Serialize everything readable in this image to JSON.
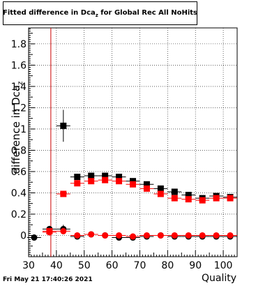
{
  "title_main": "Fitted difference in Dca",
  "title_sub": "z",
  "title_rest": " for Global Rec All NoHits",
  "timestamp": "Fri May 21 17:40:26 2021",
  "chart_data": {
    "type": "scatter",
    "title": "Fitted difference in Dca_z for Global Rec All NoHits",
    "xlabel": "Quality",
    "ylabel": "difference in Dca_z",
    "ylabel_main": "difference in Dca",
    "ylabel_sub": "z",
    "xlim": [
      30,
      105
    ],
    "ylim": [
      -0.2,
      1.95
    ],
    "xticks": [
      30,
      40,
      50,
      60,
      70,
      80,
      90,
      100
    ],
    "yticks": [
      0,
      0.2,
      0.4,
      0.6,
      0.8,
      1,
      1.2,
      1.4,
      1.6,
      1.8
    ],
    "grid": true,
    "cut_line_x": 38,
    "series": [
      {
        "color": "#000000",
        "points": [
          {
            "x": 32,
            "y": -0.02,
            "xerr": 2.5,
            "yerr": 0.02
          },
          {
            "x": 37.5,
            "y": 0.06,
            "xerr": 2.5,
            "yerr": 0.03
          },
          {
            "x": 42.5,
            "y": 0.06,
            "xerr": 2.5,
            "yerr": 0.04
          },
          {
            "x": 47.5,
            "y": -0.01,
            "xerr": 2.5,
            "yerr": 0.02
          },
          {
            "x": 52.5,
            "y": 0.01,
            "xerr": 2.5,
            "yerr": 0.01
          },
          {
            "x": 57.5,
            "y": 0.0,
            "xerr": 2.5,
            "yerr": 0.01
          },
          {
            "x": 62.5,
            "y": -0.02,
            "xerr": 2.5,
            "yerr": 0.01
          },
          {
            "x": 67.5,
            "y": -0.02,
            "xerr": 2.5,
            "yerr": 0.01
          },
          {
            "x": 72.5,
            "y": -0.01,
            "xerr": 2.5,
            "yerr": 0.01
          },
          {
            "x": 77.5,
            "y": 0.0,
            "xerr": 2.5,
            "yerr": 0.01
          },
          {
            "x": 82.5,
            "y": -0.01,
            "xerr": 2.5,
            "yerr": 0.01
          },
          {
            "x": 87.5,
            "y": -0.01,
            "xerr": 2.5,
            "yerr": 0.01
          },
          {
            "x": 92.5,
            "y": -0.01,
            "xerr": 2.5,
            "yerr": 0.01
          },
          {
            "x": 97.5,
            "y": -0.01,
            "xerr": 2.5,
            "yerr": 0.01
          },
          {
            "x": 102.5,
            "y": -0.01,
            "xerr": 2.5,
            "yerr": 0.01
          }
        ]
      },
      {
        "color": "#000000",
        "points": [
          {
            "x": 42.5,
            "y": 1.03,
            "xerr": 2.5,
            "yerr": 0.15
          },
          {
            "x": 47.5,
            "y": 0.55,
            "xerr": 2.5,
            "yerr": 0.03
          },
          {
            "x": 52.5,
            "y": 0.56,
            "xerr": 2.5,
            "yerr": 0.02
          },
          {
            "x": 57.5,
            "y": 0.56,
            "xerr": 2.5,
            "yerr": 0.02
          },
          {
            "x": 62.5,
            "y": 0.55,
            "xerr": 2.5,
            "yerr": 0.02
          },
          {
            "x": 67.5,
            "y": 0.51,
            "xerr": 2.5,
            "yerr": 0.02
          },
          {
            "x": 72.5,
            "y": 0.48,
            "xerr": 2.5,
            "yerr": 0.02
          },
          {
            "x": 77.5,
            "y": 0.44,
            "xerr": 2.5,
            "yerr": 0.02
          },
          {
            "x": 82.5,
            "y": 0.41,
            "xerr": 2.5,
            "yerr": 0.02
          },
          {
            "x": 87.5,
            "y": 0.38,
            "xerr": 2.5,
            "yerr": 0.02
          },
          {
            "x": 92.5,
            "y": 0.35,
            "xerr": 2.5,
            "yerr": 0.02
          },
          {
            "x": 97.5,
            "y": 0.37,
            "xerr": 2.5,
            "yerr": 0.02
          },
          {
            "x": 102.5,
            "y": 0.36,
            "xerr": 2.5,
            "yerr": 0.02
          }
        ]
      },
      {
        "color": "#ff0000",
        "points": [
          {
            "x": 37.5,
            "y": 0.03,
            "xerr": 2.5,
            "yerr": 0.03
          },
          {
            "x": 42.5,
            "y": 0.04,
            "xerr": 2.5,
            "yerr": 0.03
          },
          {
            "x": 47.5,
            "y": 0.0,
            "xerr": 2.5,
            "yerr": 0.02
          },
          {
            "x": 52.5,
            "y": 0.01,
            "xerr": 2.5,
            "yerr": 0.01
          },
          {
            "x": 57.5,
            "y": 0.0,
            "xerr": 2.5,
            "yerr": 0.01
          },
          {
            "x": 62.5,
            "y": 0.0,
            "xerr": 2.5,
            "yerr": 0.01
          },
          {
            "x": 67.5,
            "y": -0.01,
            "xerr": 2.5,
            "yerr": 0.01
          },
          {
            "x": 72.5,
            "y": 0.0,
            "xerr": 2.5,
            "yerr": 0.01
          },
          {
            "x": 77.5,
            "y": 0.0,
            "xerr": 2.5,
            "yerr": 0.01
          },
          {
            "x": 82.5,
            "y": 0.0,
            "xerr": 2.5,
            "yerr": 0.01
          },
          {
            "x": 87.5,
            "y": 0.0,
            "xerr": 2.5,
            "yerr": 0.01
          },
          {
            "x": 92.5,
            "y": 0.0,
            "xerr": 2.5,
            "yerr": 0.01
          },
          {
            "x": 97.5,
            "y": 0.0,
            "xerr": 2.5,
            "yerr": 0.01
          },
          {
            "x": 102.5,
            "y": 0.0,
            "xerr": 2.5,
            "yerr": 0.01
          }
        ]
      },
      {
        "color": "#ff0000",
        "points": [
          {
            "x": 37.5,
            "y": 0.04,
            "xerr": 2.5,
            "yerr": 0.02
          },
          {
            "x": 42.5,
            "y": 0.39,
            "xerr": 2.5,
            "yerr": 0.02
          },
          {
            "x": 47.5,
            "y": 0.49,
            "xerr": 2.5,
            "yerr": 0.02
          },
          {
            "x": 52.5,
            "y": 0.51,
            "xerr": 2.5,
            "yerr": 0.02
          },
          {
            "x": 57.5,
            "y": 0.52,
            "xerr": 2.5,
            "yerr": 0.02
          },
          {
            "x": 62.5,
            "y": 0.51,
            "xerr": 2.5,
            "yerr": 0.02
          },
          {
            "x": 67.5,
            "y": 0.48,
            "xerr": 2.5,
            "yerr": 0.02
          },
          {
            "x": 72.5,
            "y": 0.44,
            "xerr": 2.5,
            "yerr": 0.02
          },
          {
            "x": 77.5,
            "y": 0.39,
            "xerr": 2.5,
            "yerr": 0.02
          },
          {
            "x": 82.5,
            "y": 0.35,
            "xerr": 2.5,
            "yerr": 0.02
          },
          {
            "x": 87.5,
            "y": 0.34,
            "xerr": 2.5,
            "yerr": 0.02
          },
          {
            "x": 92.5,
            "y": 0.33,
            "xerr": 2.5,
            "yerr": 0.02
          },
          {
            "x": 97.5,
            "y": 0.35,
            "xerr": 2.5,
            "yerr": 0.02
          },
          {
            "x": 102.5,
            "y": 0.35,
            "xerr": 2.5,
            "yerr": 0.02
          }
        ]
      }
    ]
  }
}
